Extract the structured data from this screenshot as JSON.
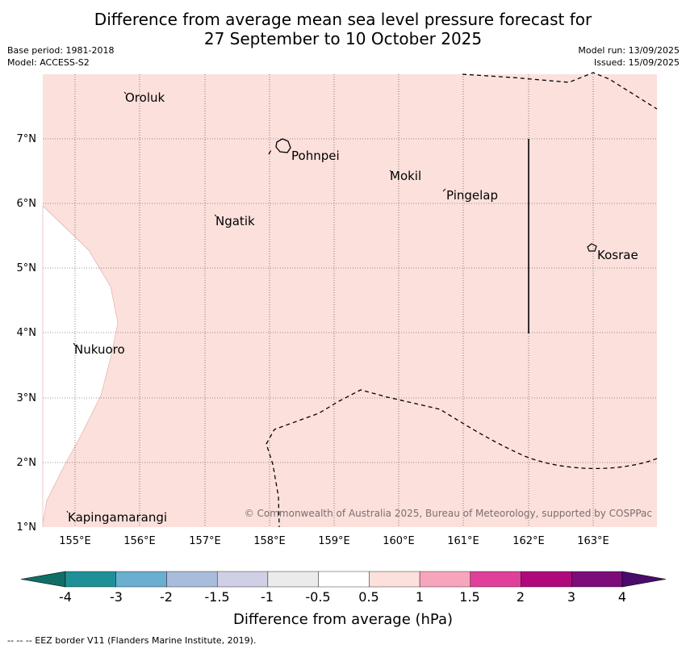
{
  "title": {
    "line1": "Difference from average mean sea level pressure forecast for",
    "line2": "27 September to 10 October 2025"
  },
  "meta": {
    "base_period": "Base period: 1981-2018",
    "model": "Model: ACCESS-S2",
    "model_run": "Model run: 13/09/2025",
    "issued": "Issued: 15/09/2025"
  },
  "map": {
    "lon_ticks": [
      "155°E",
      "156°E",
      "157°E",
      "158°E",
      "159°E",
      "160°E",
      "161°E",
      "162°E",
      "163°E"
    ],
    "lat_ticks": [
      "7°N",
      "6°N",
      "5°N",
      "4°N",
      "3°N",
      "2°N",
      "1°N"
    ],
    "places": [
      "Oroluk",
      "Pohnpei",
      "Mokil",
      "Pingelap",
      "Ngatik",
      "Kosrae",
      "Nukuoro",
      "Kapingamarangi"
    ],
    "copyright": "© Commonwealth of Australia 2025, Bureau of Meteorology, supported by COSPPac",
    "fill_colors": {
      "anomaly_0_5_to_1": "#fce0dc",
      "neutral": "#ffffff"
    }
  },
  "colorbar": {
    "labels": [
      "-4",
      "-3",
      "-2",
      "-1.5",
      "-1",
      "-0.5",
      "0.5",
      "1",
      "1.5",
      "2",
      "3",
      "4"
    ],
    "colors": [
      "#0f6f67",
      "#1f9097",
      "#6aaed0",
      "#a9bcdc",
      "#cfd0e6",
      "#ebebeb",
      "#ffffff",
      "#fce0dc",
      "#f7a5bd",
      "#e0409a",
      "#b0097c",
      "#7c0c7a",
      "#4a0c6b"
    ],
    "label": "Difference from average (hPa)"
  },
  "footer": "--  --  -- EEZ border V11 (Flanders Marine Institute, 2019)."
}
